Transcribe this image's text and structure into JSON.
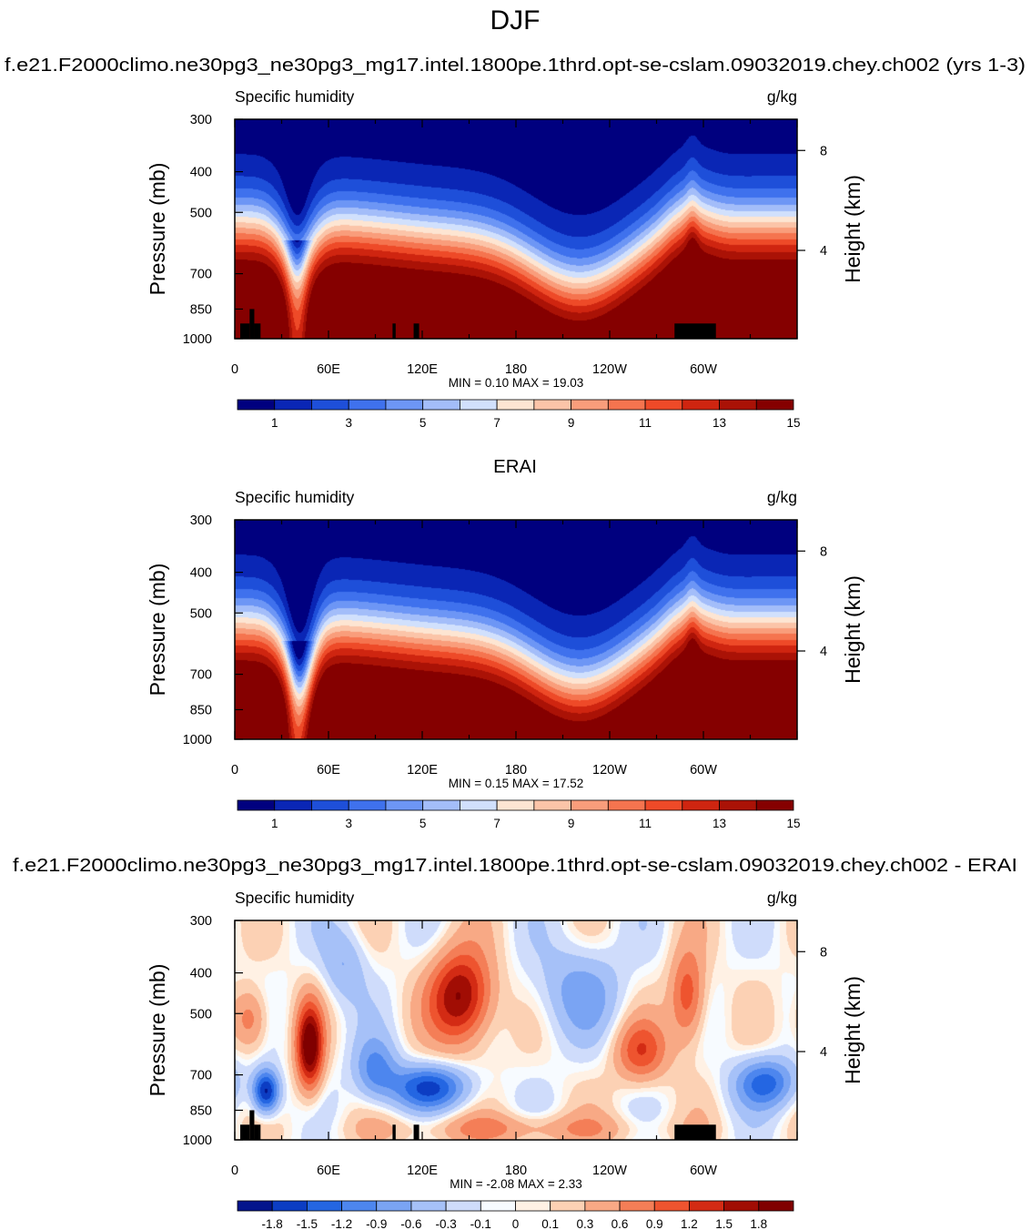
{
  "figure": {
    "title": "DJF",
    "panel1_title": "f.e21.F2000climo.ne30pg3_ne30pg3_mg17.intel.1800pe.1thrd.opt-se-cslam.09032019.chey.ch002 (yrs 1-3)",
    "panel2_title": "ERAI",
    "panel3_title": "f.e21.F2000climo.ne30pg3_ne30pg3_mg17.intel.1800pe.1thrd.opt-se-cslam.09032019.chey.ch002 - ERAI"
  },
  "colors": {
    "seq": [
      "#00007f",
      "#0a26b5",
      "#1e4fd9",
      "#3f71ed",
      "#6d96f5",
      "#a3bdf9",
      "#d1e0fc",
      "#fde5d2",
      "#fbc4a8",
      "#f99d7b",
      "#f5744f",
      "#ee4a28",
      "#cf2510",
      "#aa1206",
      "#850000"
    ],
    "div": [
      "#03148c",
      "#0c3dc3",
      "#2466e2",
      "#4d86ee",
      "#7aa4f3",
      "#a6c1f8",
      "#cfdcfb",
      "#f7fbff",
      "#fff1e4",
      "#fcd1b4",
      "#f8a985",
      "#f47e57",
      "#ee542f",
      "#d32b14",
      "#a10d04",
      "#800000"
    ],
    "topo": "#000000"
  },
  "chart_data": [
    {
      "type": "heatmap",
      "panel": "model",
      "left_label": "Specific humidity",
      "right_label": "g/kg",
      "ylabel": "Pressure (mb)",
      "ylabel_right": "Height (km)",
      "xticks": [
        "0",
        "60E",
        "120E",
        "180",
        "120W",
        "60W"
      ],
      "xtick_values": [
        0,
        60,
        120,
        180,
        240,
        300
      ],
      "xlim": [
        0,
        360
      ],
      "yticks": [
        "300",
        "400",
        "500",
        "700",
        "850",
        "1000"
      ],
      "ytick_values": [
        300,
        400,
        500,
        700,
        850,
        1000
      ],
      "ylim": [
        1000,
        300
      ],
      "yscale": "log",
      "right_ticks": [
        "8",
        "4"
      ],
      "right_tick_pressures": [
        356,
        616
      ],
      "stats": {
        "min": "0.10",
        "max": "19.03"
      },
      "stats_text": "MIN =   0.10  MAX =  19.03",
      "contour_levels": [
        0,
        1,
        2,
        3,
        4,
        5,
        6,
        7,
        8,
        9,
        10,
        11,
        12,
        13,
        14,
        15
      ],
      "colorbar": {
        "labels": [
          "1",
          "3",
          "5",
          "7",
          "9",
          "11",
          "13",
          "15"
        ],
        "colors": "seq"
      }
    },
    {
      "type": "heatmap",
      "panel": "obs",
      "left_label": "Specific humidity",
      "right_label": "g/kg",
      "ylabel": "Pressure (mb)",
      "ylabel_right": "Height (km)",
      "xticks": [
        "0",
        "60E",
        "120E",
        "180",
        "120W",
        "60W"
      ],
      "xtick_values": [
        0,
        60,
        120,
        180,
        240,
        300
      ],
      "xlim": [
        0,
        360
      ],
      "yticks": [
        "300",
        "400",
        "500",
        "700",
        "850",
        "1000"
      ],
      "ytick_values": [
        300,
        400,
        500,
        700,
        850,
        1000
      ],
      "ylim": [
        1000,
        300
      ],
      "yscale": "log",
      "right_ticks": [
        "8",
        "4"
      ],
      "right_tick_pressures": [
        356,
        616
      ],
      "stats": {
        "min": "0.15",
        "max": "17.52"
      },
      "stats_text": "MIN =   0.15  MAX =  17.52",
      "contour_levels": [
        0,
        1,
        2,
        3,
        4,
        5,
        6,
        7,
        8,
        9,
        10,
        11,
        12,
        13,
        14,
        15
      ],
      "colorbar": {
        "labels": [
          "1",
          "3",
          "5",
          "7",
          "9",
          "11",
          "13",
          "15"
        ],
        "colors": "seq"
      }
    },
    {
      "type": "heatmap",
      "panel": "diff",
      "left_label": "Specific humidity",
      "right_label": "g/kg",
      "ylabel": "Pressure (mb)",
      "ylabel_right": "Height (km)",
      "xticks": [
        "0",
        "60E",
        "120E",
        "180",
        "120W",
        "60W"
      ],
      "xtick_values": [
        0,
        60,
        120,
        180,
        240,
        300
      ],
      "xlim": [
        0,
        360
      ],
      "yticks": [
        "300",
        "400",
        "500",
        "700",
        "850",
        "1000"
      ],
      "ytick_values": [
        300,
        400,
        500,
        700,
        850,
        1000
      ],
      "ylim": [
        1000,
        300
      ],
      "yscale": "log",
      "right_ticks": [
        "8",
        "4"
      ],
      "right_tick_pressures": [
        356,
        616
      ],
      "stats": {
        "min": "-2.08",
        "max": "2.33"
      },
      "stats_text": "MIN =  -2.08  MAX =    2.33",
      "contour_levels": [
        -1.8,
        -1.5,
        -1.2,
        -0.9,
        -0.6,
        -0.3,
        -0.1,
        0,
        0.1,
        0.3,
        0.6,
        0.9,
        1.2,
        1.5,
        1.8
      ],
      "colorbar": {
        "labels": [
          "-1.8",
          "-1.5",
          "-1.2",
          "-0.9",
          "-0.6",
          "-0.3",
          "-0.1",
          "0",
          "0.1",
          "0.3",
          "0.6",
          "0.9",
          "1.2",
          "1.5",
          "1.8"
        ],
        "colors": "div"
      }
    }
  ]
}
